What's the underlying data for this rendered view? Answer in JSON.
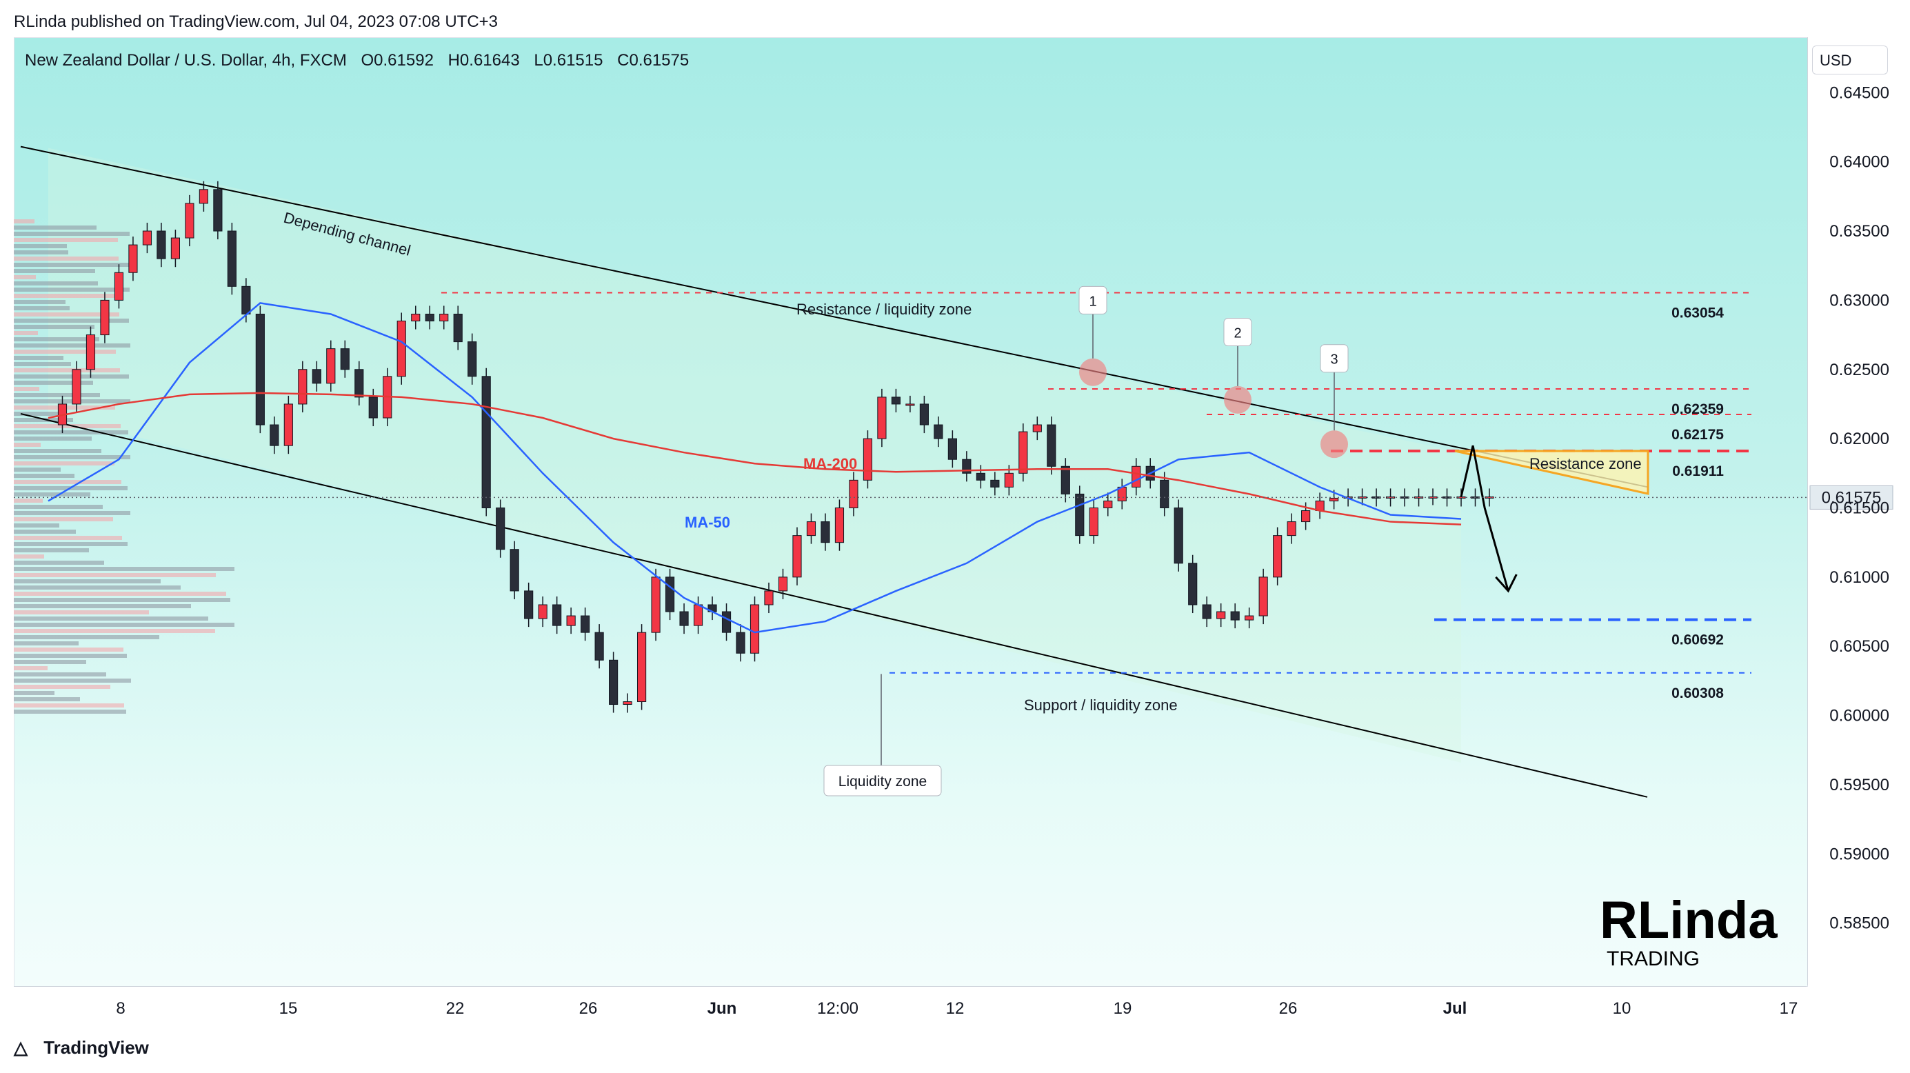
{
  "publish_line": "RLinda published on TradingView.com, Jul 04, 2023 07:08 UTC+3",
  "legend": {
    "symbol": "New Zealand Dollar / U.S. Dollar, 4h, FXCM",
    "open": "O0.61592",
    "high": "H0.61643",
    "low": "L0.61515",
    "close": "C0.61575"
  },
  "currency_button": "USD",
  "current_price_tag": "0.61575",
  "footer_brand": "TradingView",
  "watermark": {
    "big": "RLinda",
    "sub": "TRADING"
  },
  "annotations": {
    "channel": "Depending channel",
    "resistance_liquidity": "Resistance / liquidity zone",
    "support_liquidity": "Support / liquidity zone",
    "liquidity_zone": "Liquidity zone",
    "resistance_zone": "Resistance zone",
    "ma200": "MA-200",
    "ma50": "MA-50",
    "touch_markers": [
      "1",
      "2",
      "3"
    ]
  },
  "colors": {
    "bull_candle": "#f23645",
    "bear_candle": "#2a2e39",
    "ma50": "#2962ff",
    "ma200": "#e53935",
    "resistance_dash": "#f23645",
    "support_dash": "#2962ff",
    "zone_fill": "#fff3b0",
    "zone_edge": "#f5a623"
  },
  "chart_data": {
    "type": "line",
    "title": "New Zealand Dollar / U.S. Dollar, 4h, FXCM",
    "ylim": [
      0.5805,
      0.649
    ],
    "y_ticks": [
      "0.64500",
      "0.64000",
      "0.63500",
      "0.63000",
      "0.62500",
      "0.62000",
      "0.61500",
      "0.61000",
      "0.60500",
      "0.60000",
      "0.59500",
      "0.59000",
      "0.58500"
    ],
    "x_ticks": [
      "8",
      "15",
      "22",
      "26",
      "Jun",
      "12:00",
      "12",
      "19",
      "26",
      "Jul",
      "10",
      "17"
    ],
    "levels": [
      {
        "value": 0.63054,
        "label": "0.63054",
        "style": "red-dashed"
      },
      {
        "value": 0.62359,
        "label": "0.62359",
        "style": "red-dashed"
      },
      {
        "value": 0.62175,
        "label": "0.62175",
        "style": "red-dashed"
      },
      {
        "value": 0.61911,
        "label": "0.61911",
        "style": "red-dashed"
      },
      {
        "value": 0.60692,
        "label": "0.60692",
        "style": "blue-dashed"
      },
      {
        "value": 0.60308,
        "label": "0.60308",
        "style": "blue-dashed"
      }
    ],
    "current_price": 0.61575,
    "series": [
      {
        "name": "price",
        "x": [
          0,
          12,
          24,
          36,
          48,
          60,
          72,
          84,
          96,
          108,
          120,
          132,
          144,
          156,
          168,
          180,
          192,
          204,
          216,
          228,
          240,
          252,
          264,
          276,
          288,
          300,
          312,
          324,
          336,
          348,
          360,
          372,
          384,
          396,
          408,
          420,
          432,
          444,
          456,
          468,
          480,
          492,
          504,
          516,
          528,
          540,
          552,
          564,
          576,
          588,
          600,
          612,
          624,
          636,
          648,
          660,
          672,
          684,
          696,
          708,
          720,
          732,
          744,
          756,
          768,
          780,
          792,
          804,
          816,
          828,
          840,
          852,
          864,
          876,
          888,
          900,
          912,
          924,
          936,
          948,
          960,
          972,
          984,
          996,
          1008,
          1020,
          1032,
          1044,
          1056,
          1068,
          1080,
          1092,
          1104,
          1116,
          1128,
          1140,
          1152,
          1164,
          1176,
          1188,
          1200,
          1212,
          1224
        ],
        "values": [
          0.621,
          0.6225,
          0.625,
          0.6275,
          0.63,
          0.632,
          0.634,
          0.635,
          0.633,
          0.6345,
          0.637,
          0.638,
          0.635,
          0.631,
          0.629,
          0.621,
          0.6195,
          0.6225,
          0.625,
          0.624,
          0.6265,
          0.625,
          0.623,
          0.6215,
          0.6245,
          0.6285,
          0.629,
          0.6285,
          0.629,
          0.627,
          0.6245,
          0.615,
          0.612,
          0.609,
          0.607,
          0.608,
          0.6065,
          0.6072,
          0.606,
          0.604,
          0.6008,
          0.601,
          0.606,
          0.61,
          0.6075,
          0.6065,
          0.608,
          0.6075,
          0.606,
          0.6045,
          0.608,
          0.609,
          0.61,
          0.613,
          0.614,
          0.6125,
          0.615,
          0.617,
          0.62,
          0.623,
          0.6225,
          0.6225,
          0.621,
          0.62,
          0.6185,
          0.6175,
          0.617,
          0.6165,
          0.6175,
          0.6205,
          0.621,
          0.618,
          0.616,
          0.613,
          0.615,
          0.6155,
          0.6165,
          0.618,
          0.617,
          0.615,
          0.611,
          0.608,
          0.607,
          0.6075,
          0.6069,
          0.6072,
          0.61,
          0.613,
          0.614,
          0.6148,
          0.6155,
          0.6157,
          0.6158,
          0.6158,
          0.6157,
          0.6158,
          0.6157,
          0.6158,
          0.6158,
          0.6157,
          0.6158,
          0.6157,
          0.6158
        ]
      },
      {
        "name": "MA-50",
        "x": [
          0,
          60,
          120,
          180,
          240,
          300,
          360,
          420,
          480,
          540,
          600,
          660,
          720,
          780,
          840,
          900,
          960,
          1020,
          1080,
          1140,
          1200
        ],
        "values": [
          0.6155,
          0.6185,
          0.6255,
          0.6298,
          0.629,
          0.627,
          0.623,
          0.6175,
          0.6125,
          0.6085,
          0.606,
          0.6068,
          0.609,
          0.611,
          0.614,
          0.616,
          0.6185,
          0.619,
          0.6165,
          0.6145,
          0.6142
        ]
      },
      {
        "name": "MA-200",
        "x": [
          0,
          60,
          120,
          180,
          240,
          300,
          360,
          420,
          480,
          540,
          600,
          660,
          720,
          780,
          840,
          900,
          960,
          1020,
          1080,
          1140,
          1200
        ],
        "values": [
          0.6215,
          0.6225,
          0.6232,
          0.6233,
          0.6232,
          0.623,
          0.6225,
          0.6215,
          0.62,
          0.619,
          0.6182,
          0.6178,
          0.6176,
          0.6177,
          0.6178,
          0.6178,
          0.617,
          0.616,
          0.6148,
          0.614,
          0.6138
        ]
      },
      {
        "name": "Depending channel upper",
        "x": [
          0,
          1200
        ],
        "values": [
          0.641,
          0.619
        ]
      },
      {
        "name": "Depending channel lower",
        "x": [
          0,
          1200
        ],
        "values": [
          0.6217,
          0.5966
        ]
      },
      {
        "name": "projection",
        "x": [
          1200,
          1210,
          1220,
          1240
        ],
        "values": [
          0.6158,
          0.6195,
          0.615,
          0.609
        ]
      }
    ]
  }
}
